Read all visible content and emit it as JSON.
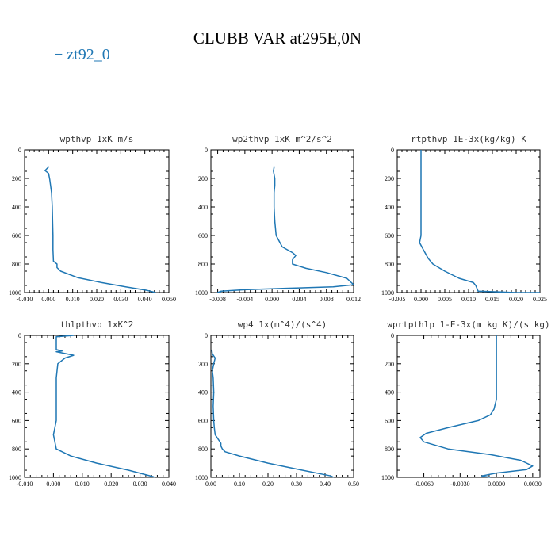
{
  "title": "CLUBB VAR at295E,0N",
  "legend": "− zt92_0",
  "colors": {
    "line": "#1f77b4",
    "axis": "#000000"
  },
  "chart_data": [
    {
      "type": "line",
      "title": "wpthvp  1xK m/s",
      "xlim": [
        -0.01,
        0.05
      ],
      "ylim": [
        1000,
        0
      ],
      "xticks": [
        "-0.010",
        "0.000",
        "0.010",
        "0.020",
        "0.030",
        "0.040",
        "0.050"
      ],
      "xtick_values": [
        -0.01,
        0,
        0.01,
        0.02,
        0.03,
        0.04,
        0.05
      ],
      "yticks": [
        "0",
        "200",
        "400",
        "600",
        "800",
        "1000"
      ],
      "series": [
        {
          "x": [
            0,
            -0.0005,
            -0.0015,
            0.0,
            0.0005,
            0.0012,
            0.0015,
            0.0018,
            0.0018,
            0.002,
            0.0035,
            0.0035,
            0.005,
            0.012,
            0.022,
            0.032,
            0.041,
            0.0445
          ],
          "y": [
            120,
            128,
            145,
            165,
            210,
            300,
            400,
            600,
            700,
            780,
            800,
            825,
            850,
            895,
            930,
            960,
            985,
            1000
          ]
        }
      ]
    },
    {
      "type": "line",
      "title": "wp2thvp  1xK m^2/s^2",
      "xlim": [
        -0.009,
        0.012
      ],
      "ylim": [
        1000,
        0
      ],
      "xticks": [
        "-0.008",
        "-0.004",
        "0.000",
        "0.004",
        "0.008",
        "0.012"
      ],
      "xtick_values": [
        -0.008,
        -0.004,
        0,
        0.004,
        0.008,
        0.012
      ],
      "yticks": [
        "0",
        "200",
        "400",
        "600",
        "800",
        "1000"
      ],
      "series": [
        {
          "x": [
            0.0003,
            0.0002,
            0.0004,
            0.0004,
            0.0003,
            0.0003,
            0.0004,
            0.0006,
            0.0015,
            0.003,
            0.0035,
            0.003,
            0.003,
            0.005,
            0.008,
            0.011,
            0.012,
            0.009,
            0.002,
            -0.004,
            -0.0075,
            -0.008,
            -0.0075
          ],
          "y": [
            120,
            150,
            200,
            250,
            300,
            400,
            500,
            600,
            680,
            720,
            740,
            770,
            800,
            830,
            860,
            900,
            945,
            960,
            970,
            980,
            990,
            1000,
            1010
          ]
        }
      ]
    },
    {
      "type": "line",
      "title": "rtpthvp  1E-3x(kg/kg) K",
      "xlim": [
        -0.005,
        0.025
      ],
      "ylim": [
        1000,
        0
      ],
      "xticks": [
        "-0.005",
        "0.000",
        "0.005",
        "0.010",
        "0.015",
        "0.020",
        "0.025"
      ],
      "xtick_values": [
        -0.005,
        0,
        0.005,
        0.01,
        0.015,
        0.02,
        0.025
      ],
      "yticks": [
        "0",
        "200",
        "400",
        "600",
        "800",
        "1000"
      ],
      "series": [
        {
          "x": [
            0.0,
            0.0,
            0.0,
            0.0,
            -0.0003,
            0.0005,
            0.0015,
            0.0025,
            0.005,
            0.008,
            0.011,
            0.0115,
            0.012,
            0.02,
            0.025
          ],
          "y": [
            0,
            200,
            400,
            600,
            650,
            700,
            760,
            800,
            850,
            900,
            930,
            950,
            990,
            1000,
            1000
          ]
        }
      ]
    },
    {
      "type": "line",
      "title": "thlpthvp  1xK^2",
      "xlim": [
        -0.01,
        0.04
      ],
      "ylim": [
        1000,
        0
      ],
      "xticks": [
        "-0.010",
        "0.000",
        "0.010",
        "0.020",
        "0.030",
        "0.040"
      ],
      "xtick_values": [
        -0.01,
        0,
        0.01,
        0.02,
        0.03,
        0.04
      ],
      "yticks": [
        "0",
        "200",
        "400",
        "600",
        "800",
        "1000"
      ],
      "series": [
        {
          "x": [
            0.007,
            0.001,
            0.001,
            0.001,
            0.003,
            0.001,
            0.007,
            0.004,
            0.0015,
            0.001,
            0.001,
            0.001,
            0.001,
            0.0,
            0.001,
            0.006,
            0.015,
            0.026,
            0.0345,
            0.035
          ],
          "y": [
            0,
            10,
            60,
            100,
            110,
            115,
            140,
            160,
            200,
            300,
            400,
            500,
            600,
            700,
            800,
            850,
            900,
            950,
            995,
            1000
          ]
        }
      ]
    },
    {
      "type": "line",
      "title": "wp4  1x(m^4)/(s^4)",
      "xlim": [
        0,
        0.5
      ],
      "ylim": [
        1000,
        0
      ],
      "xticks": [
        "0.00",
        "0.10",
        "0.20",
        "0.30",
        "0.40",
        "0.50"
      ],
      "xtick_values": [
        0,
        0.1,
        0.2,
        0.3,
        0.4,
        0.5
      ],
      "yticks": [
        "0",
        "200",
        "400",
        "600",
        "800",
        "1000"
      ],
      "series": [
        {
          "x": [
            0.003,
            0.005,
            0.015,
            0.01,
            0.005,
            0.008,
            0.01,
            0.008,
            0.01,
            0.012,
            0.015,
            0.025,
            0.035,
            0.035,
            0.04,
            0.05,
            0.1,
            0.2,
            0.32,
            0.42,
            0.43
          ],
          "y": [
            100,
            130,
            160,
            200,
            250,
            300,
            400,
            500,
            600,
            650,
            700,
            730,
            760,
            780,
            800,
            820,
            850,
            900,
            950,
            990,
            1000
          ]
        }
      ]
    },
    {
      "type": "line",
      "title": "wprtpthlp  1-E-3x(m kg K)/(s kg)",
      "xlim": [
        -0.0082,
        0.0036
      ],
      "ylim": [
        1000,
        0
      ],
      "xticks": [
        "-0.0060",
        "-0.0030",
        "0.0000",
        "0.0030"
      ],
      "xtick_values": [
        -0.006,
        -0.003,
        0,
        0.003
      ],
      "yticks": [
        "0",
        "200",
        "400",
        "600",
        "800",
        "1000"
      ],
      "series": [
        {
          "x": [
            0.0,
            0.0,
            0.0,
            -0.0002,
            -0.0005,
            -0.0015,
            -0.004,
            -0.0058,
            -0.0063,
            -0.006,
            -0.004,
            -0.0005,
            0.002,
            0.003,
            0.0025,
            0.0,
            -0.0012,
            -0.0005
          ],
          "y": [
            0,
            300,
            450,
            520,
            560,
            600,
            650,
            690,
            720,
            750,
            800,
            840,
            880,
            920,
            945,
            970,
            990,
            1000
          ]
        }
      ]
    }
  ]
}
